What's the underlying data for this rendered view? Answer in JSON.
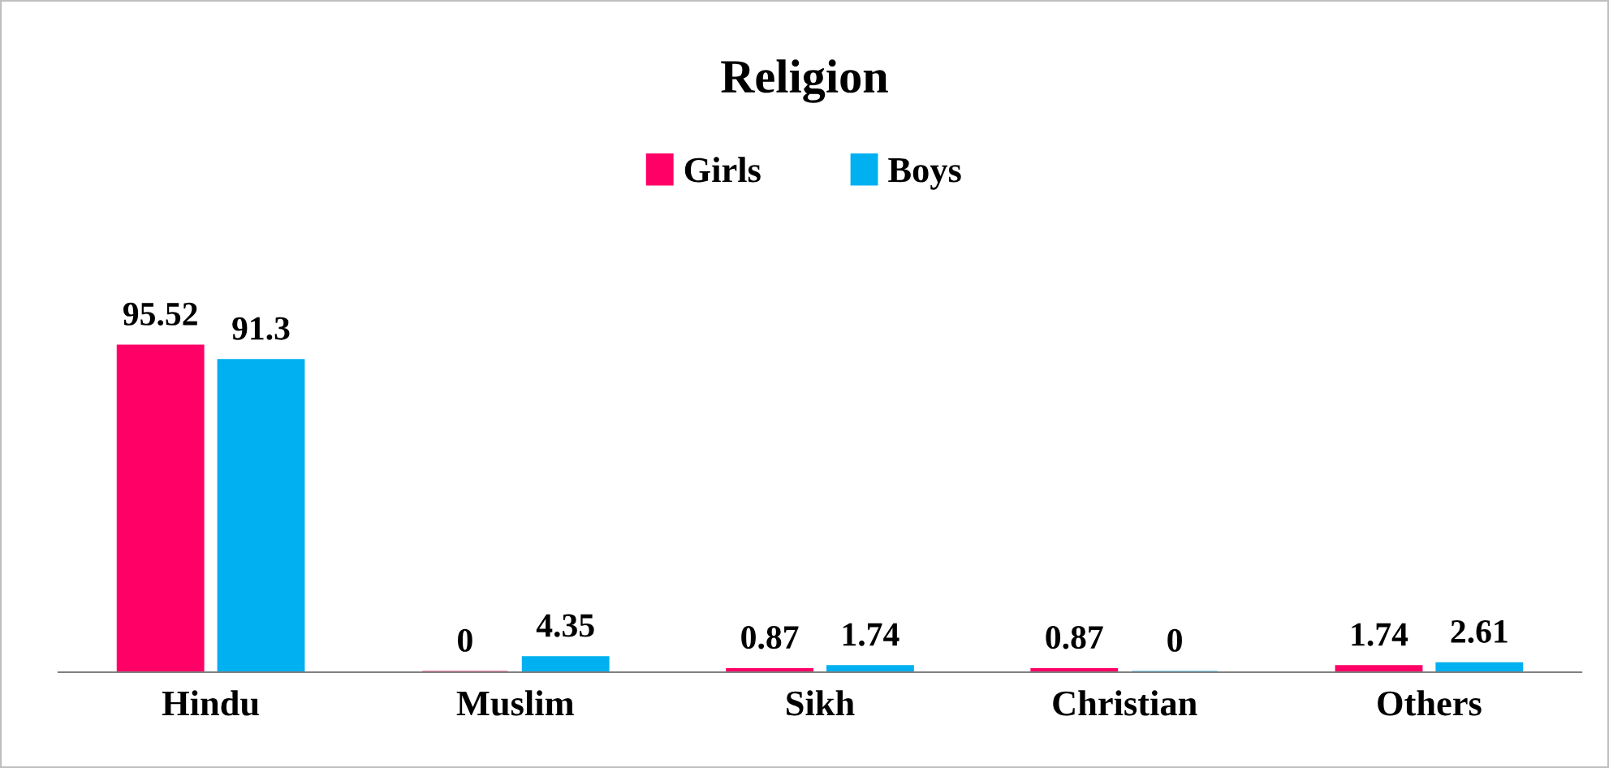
{
  "chart_data": {
    "type": "bar",
    "title": "Religion",
    "categories": [
      "Hindu",
      "Muslim",
      "Sikh",
      "Christian",
      "Others"
    ],
    "series": [
      {
        "name": "Girls",
        "color": "#ff0066",
        "values": [
          95.52,
          0,
          0.87,
          0.87,
          1.74
        ]
      },
      {
        "name": "Boys",
        "color": "#00b0f0",
        "values": [
          91.3,
          4.35,
          1.74,
          0,
          2.61
        ]
      }
    ],
    "data_labels": true,
    "legend": "top",
    "grid": false
  }
}
